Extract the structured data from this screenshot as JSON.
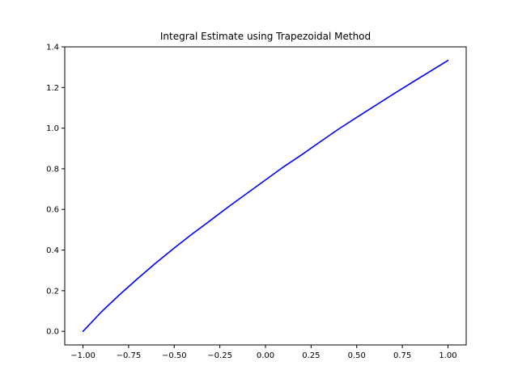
{
  "chart_data": {
    "type": "line",
    "title": "Integral Estimate using Trapezoidal Method",
    "xlabel": "",
    "ylabel": "",
    "xlim": [
      -1.1,
      1.1
    ],
    "ylim": [
      -0.067,
      1.4
    ],
    "grid": false,
    "x_ticks": [
      -1.0,
      -0.75,
      -0.5,
      -0.25,
      0.0,
      0.25,
      0.5,
      0.75,
      1.0
    ],
    "x_tick_labels": [
      "−1.00",
      "−0.75",
      "−0.50",
      "−0.25",
      "0.00",
      "0.25",
      "0.50",
      "0.75",
      "1.00"
    ],
    "y_ticks": [
      0.0,
      0.2,
      0.4,
      0.6,
      0.8,
      1.0,
      1.2,
      1.4
    ],
    "y_tick_labels": [
      "0.0",
      "0.2",
      "0.4",
      "0.6",
      "0.8",
      "1.0",
      "1.2",
      "1.4"
    ],
    "series": [
      {
        "color": "#0000ff",
        "x": [
          -1.0,
          -0.9,
          -0.8,
          -0.7,
          -0.6,
          -0.5,
          -0.4,
          -0.3,
          -0.2,
          -0.1,
          0.0,
          0.1,
          0.2,
          0.3,
          0.4,
          0.5,
          0.6,
          0.7,
          0.8,
          0.9,
          1.0
        ],
        "y": [
          0.0,
          0.095,
          0.18,
          0.26,
          0.337,
          0.41,
          0.48,
          0.547,
          0.615,
          0.68,
          0.745,
          0.81,
          0.87,
          0.933,
          0.995,
          1.053,
          1.11,
          1.167,
          1.223,
          1.278,
          1.333
        ]
      }
    ]
  }
}
